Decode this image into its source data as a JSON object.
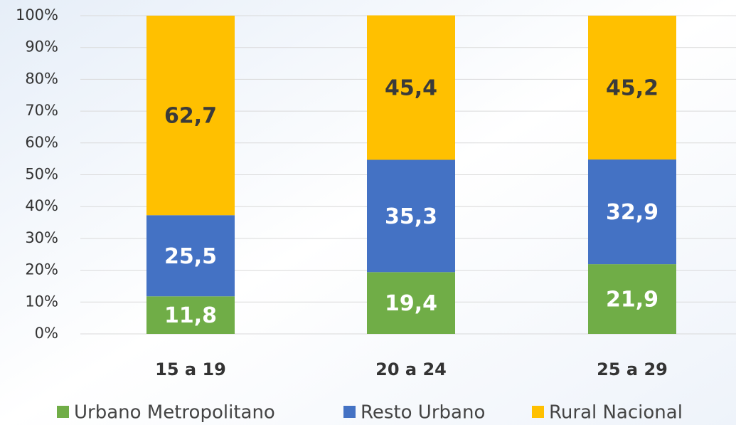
{
  "chart_data": {
    "type": "stacked_bar",
    "categories": [
      "15 a 19",
      "20 a 24",
      "25 a 29"
    ],
    "series": [
      {
        "name": "Urbano Metropolitano",
        "color": "#70ad47",
        "values": [
          11.8,
          19.4,
          21.9
        ],
        "value_labels": [
          "11,8",
          "19,4",
          "21,9"
        ]
      },
      {
        "name": "Resto Urbano",
        "color": "#4472c4",
        "values": [
          25.5,
          35.3,
          32.9
        ],
        "value_labels": [
          "25,5",
          "35,3",
          "32,9"
        ]
      },
      {
        "name": "Rural Nacional",
        "color": "#ffc000",
        "values": [
          62.7,
          45.4,
          45.2
        ],
        "value_labels": [
          "62,7",
          "45,4",
          "45,2"
        ]
      }
    ],
    "ylim": [
      0,
      100
    ],
    "yticks": [
      {
        "value": 0,
        "label": "0%"
      },
      {
        "value": 10,
        "label": "10%"
      },
      {
        "value": 20,
        "label": "20%"
      },
      {
        "value": 30,
        "label": "30%"
      },
      {
        "value": 40,
        "label": "40%"
      },
      {
        "value": 50,
        "label": "50%"
      },
      {
        "value": 60,
        "label": "60%"
      },
      {
        "value": 70,
        "label": "70%"
      },
      {
        "value": 80,
        "label": "80%"
      },
      {
        "value": 90,
        "label": "90%"
      },
      {
        "value": 100,
        "label": "100%"
      }
    ],
    "grid": true,
    "legend": "bottom"
  }
}
